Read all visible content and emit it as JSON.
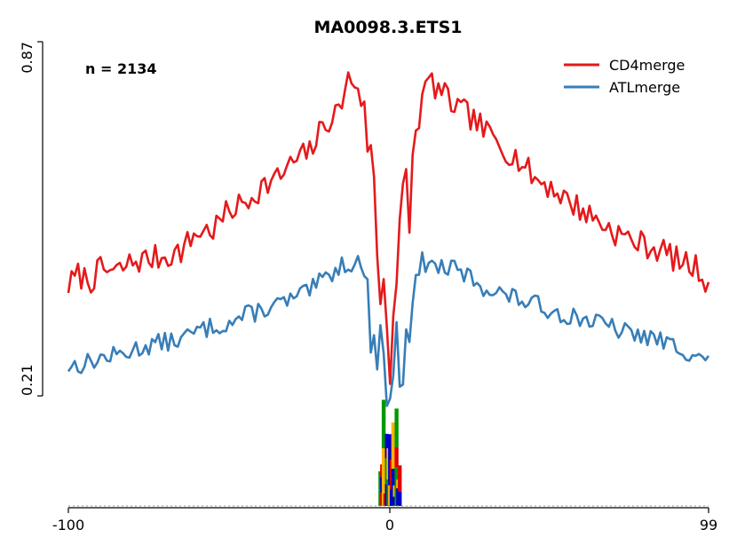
{
  "chart_data": {
    "type": "line",
    "title": "MA0098.3.ETS1",
    "annotation": "n = 2134",
    "xlim": [
      -100,
      99
    ],
    "x_ticks": [
      "-100",
      "0",
      "99"
    ],
    "ylim": [
      0.21,
      0.87
    ],
    "y_ticks": [
      "0.21",
      "0.87"
    ],
    "legend_position": "top-right",
    "grid": false,
    "series": [
      {
        "name": "CD4merge",
        "color": "#e41a1c",
        "anchors": [
          [
            -100,
            0.415
          ],
          [
            -97,
            0.435
          ],
          [
            -93,
            0.425
          ],
          [
            -90,
            0.445
          ],
          [
            -85,
            0.44
          ],
          [
            -80,
            0.46
          ],
          [
            -75,
            0.465
          ],
          [
            -70,
            0.47
          ],
          [
            -65,
            0.48
          ],
          [
            -60,
            0.515
          ],
          [
            -55,
            0.52
          ],
          [
            -50,
            0.555
          ],
          [
            -45,
            0.57
          ],
          [
            -40,
            0.6
          ],
          [
            -35,
            0.615
          ],
          [
            -30,
            0.645
          ],
          [
            -25,
            0.665
          ],
          [
            -20,
            0.72
          ],
          [
            -16,
            0.74
          ],
          [
            -13,
            0.8
          ],
          [
            -10,
            0.79
          ],
          [
            -8,
            0.74
          ],
          [
            -6,
            0.62
          ],
          [
            -4,
            0.49
          ],
          [
            -2,
            0.42
          ],
          [
            0,
            0.36
          ],
          [
            2,
            0.43
          ],
          [
            4,
            0.49
          ],
          [
            6,
            0.6
          ],
          [
            8,
            0.7
          ],
          [
            10,
            0.76
          ],
          [
            12,
            0.8
          ],
          [
            15,
            0.78
          ],
          [
            20,
            0.75
          ],
          [
            25,
            0.73
          ],
          [
            30,
            0.7
          ],
          [
            35,
            0.675
          ],
          [
            40,
            0.65
          ],
          [
            45,
            0.615
          ],
          [
            50,
            0.6
          ],
          [
            55,
            0.575
          ],
          [
            60,
            0.555
          ],
          [
            65,
            0.535
          ],
          [
            70,
            0.515
          ],
          [
            75,
            0.5
          ],
          [
            80,
            0.49
          ],
          [
            85,
            0.48
          ],
          [
            90,
            0.46
          ],
          [
            95,
            0.45
          ],
          [
            99,
            0.42
          ]
        ],
        "amplitude": 0.025,
        "center_amplitude": 0.16,
        "seed": 7
      },
      {
        "name": "ATLmerge",
        "color": "#377eb8",
        "anchors": [
          [
            -100,
            0.265
          ],
          [
            -95,
            0.27
          ],
          [
            -90,
            0.28
          ],
          [
            -85,
            0.285
          ],
          [
            -80,
            0.295
          ],
          [
            -75,
            0.305
          ],
          [
            -70,
            0.31
          ],
          [
            -65,
            0.315
          ],
          [
            -60,
            0.33
          ],
          [
            -55,
            0.34
          ],
          [
            -50,
            0.345
          ],
          [
            -45,
            0.36
          ],
          [
            -40,
            0.37
          ],
          [
            -35,
            0.38
          ],
          [
            -30,
            0.39
          ],
          [
            -25,
            0.405
          ],
          [
            -20,
            0.43
          ],
          [
            -15,
            0.455
          ],
          [
            -10,
            0.46
          ],
          [
            -8,
            0.44
          ],
          [
            -6,
            0.38
          ],
          [
            -4,
            0.31
          ],
          [
            -2,
            0.27
          ],
          [
            0,
            0.23
          ],
          [
            2,
            0.27
          ],
          [
            4,
            0.31
          ],
          [
            6,
            0.37
          ],
          [
            8,
            0.42
          ],
          [
            10,
            0.46
          ],
          [
            15,
            0.45
          ],
          [
            20,
            0.445
          ],
          [
            25,
            0.43
          ],
          [
            30,
            0.41
          ],
          [
            35,
            0.4
          ],
          [
            40,
            0.39
          ],
          [
            45,
            0.38
          ],
          [
            50,
            0.37
          ],
          [
            55,
            0.36
          ],
          [
            60,
            0.355
          ],
          [
            65,
            0.345
          ],
          [
            70,
            0.335
          ],
          [
            75,
            0.325
          ],
          [
            80,
            0.32
          ],
          [
            85,
            0.31
          ],
          [
            90,
            0.3
          ],
          [
            95,
            0.285
          ],
          [
            99,
            0.275
          ]
        ],
        "amplitude": 0.018,
        "center_amplitude": 0.09,
        "seed": 13
      }
    ],
    "motif_logo": {
      "x_range": [
        -3,
        3
      ],
      "colors": [
        "#0000cc",
        "#009900",
        "#ffb300",
        "#dd0000"
      ]
    }
  }
}
